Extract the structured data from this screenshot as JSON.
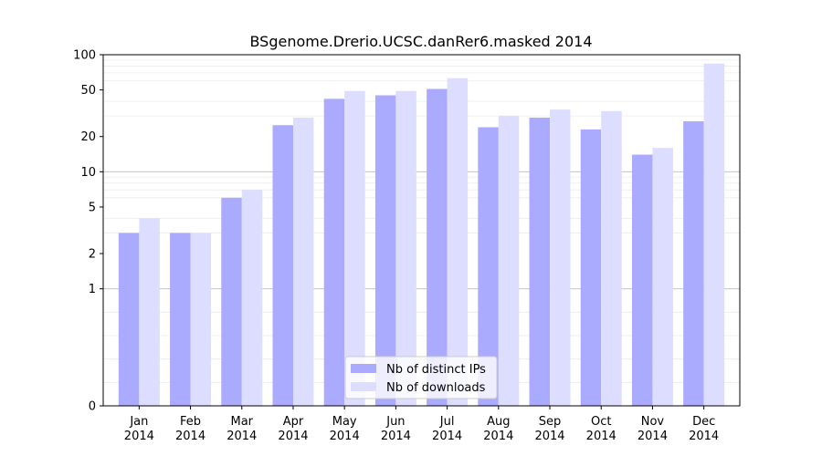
{
  "chart_data": {
    "type": "bar",
    "title": "BSgenome.Drerio.UCSC.danRer6.masked 2014",
    "xlabel": "",
    "ylabel": "",
    "y_scale": "symlog",
    "ylim": [
      0,
      100
    ],
    "y_ticks": [
      0,
      1,
      2,
      5,
      10,
      20,
      50,
      100
    ],
    "y_tick_labels": [
      "0",
      "1",
      "2",
      "5",
      "10",
      "20",
      "50",
      "100"
    ],
    "categories": [
      "Jan\n2014",
      "Feb\n2014",
      "Mar\n2014",
      "Apr\n2014",
      "May\n2014",
      "Jun\n2014",
      "Jul\n2014",
      "Aug\n2014",
      "Sep\n2014",
      "Oct\n2014",
      "Nov\n2014",
      "Dec\n2014"
    ],
    "category_labels": [
      {
        "month": "Jan",
        "year": "2014"
      },
      {
        "month": "Feb",
        "year": "2014"
      },
      {
        "month": "Mar",
        "year": "2014"
      },
      {
        "month": "Apr",
        "year": "2014"
      },
      {
        "month": "May",
        "year": "2014"
      },
      {
        "month": "Jun",
        "year": "2014"
      },
      {
        "month": "Jul",
        "year": "2014"
      },
      {
        "month": "Aug",
        "year": "2014"
      },
      {
        "month": "Sep",
        "year": "2014"
      },
      {
        "month": "Oct",
        "year": "2014"
      },
      {
        "month": "Nov",
        "year": "2014"
      },
      {
        "month": "Dec",
        "year": "2014"
      }
    ],
    "series": [
      {
        "name": "Nb of distinct IPs",
        "color": "#aaaaff",
        "values": [
          3,
          3,
          6,
          25,
          42,
          45,
          51,
          24,
          29,
          23,
          14,
          27
        ]
      },
      {
        "name": "Nb of downloads",
        "color": "#ddddff",
        "values": [
          4,
          3,
          7,
          29,
          49,
          49,
          63,
          30,
          34,
          33,
          16,
          84
        ]
      }
    ],
    "grid": {
      "major": true,
      "minor": true,
      "major_color": "#bdbdbd",
      "minor_color": "#ececec"
    },
    "legend_position": "bottom-center"
  }
}
